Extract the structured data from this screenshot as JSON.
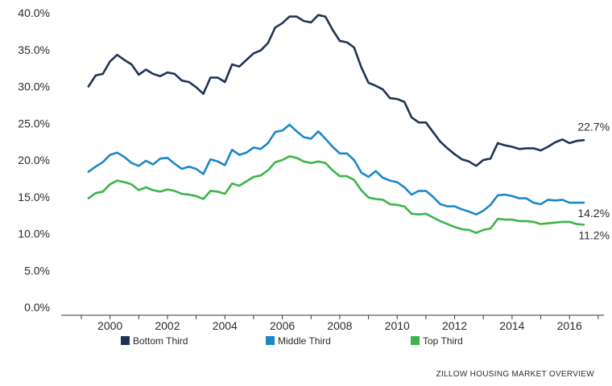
{
  "chart_data": {
    "type": "line",
    "title": "",
    "xlabel": "",
    "ylabel": "",
    "ylim": [
      0,
      40
    ],
    "xlim": [
      1998.3,
      2017.2
    ],
    "y_ticks": [
      0,
      5,
      10,
      15,
      20,
      25,
      30,
      35,
      40
    ],
    "y_tick_labels": [
      "0.0%",
      "5.0%",
      "10.0%",
      "15.0%",
      "20.0%",
      "25.0%",
      "30.0%",
      "35.0%",
      "40.0%"
    ],
    "x_ticks": [
      2000,
      2002,
      2004,
      2006,
      2008,
      2010,
      2012,
      2014,
      2016
    ],
    "x_tick_labels": [
      "2000",
      "2002",
      "2004",
      "2006",
      "2008",
      "2010",
      "2012",
      "2014",
      "2016"
    ],
    "grid": false,
    "legend_position": "bottom",
    "x": [
      1999.25,
      1999.5,
      1999.75,
      2000.0,
      2000.25,
      2000.5,
      2000.75,
      2001.0,
      2001.25,
      2001.5,
      2001.75,
      2002.0,
      2002.25,
      2002.5,
      2002.75,
      2003.0,
      2003.25,
      2003.5,
      2003.75,
      2004.0,
      2004.25,
      2004.5,
      2004.75,
      2005.0,
      2005.25,
      2005.5,
      2005.75,
      2006.0,
      2006.25,
      2006.5,
      2006.75,
      2007.0,
      2007.25,
      2007.5,
      2007.75,
      2008.0,
      2008.25,
      2008.5,
      2008.75,
      2009.0,
      2009.25,
      2009.5,
      2009.75,
      2010.0,
      2010.25,
      2010.5,
      2010.75,
      2011.0,
      2011.25,
      2011.5,
      2011.75,
      2012.0,
      2012.25,
      2012.5,
      2012.75,
      2013.0,
      2013.25,
      2013.5,
      2013.75,
      2014.0,
      2014.25,
      2014.5,
      2014.75,
      2015.0,
      2015.25,
      2015.5,
      2015.75,
      2016.0,
      2016.25,
      2016.5
    ],
    "series": [
      {
        "name": "Bottom Third",
        "color": "#1e3354",
        "end_label": "22.7%",
        "values": [
          30.0,
          31.5,
          31.7,
          33.4,
          34.3,
          33.6,
          33.0,
          31.6,
          32.3,
          31.7,
          31.4,
          31.9,
          31.7,
          30.8,
          30.6,
          29.9,
          29.0,
          31.2,
          31.2,
          30.6,
          33.0,
          32.7,
          33.6,
          34.5,
          34.9,
          35.9,
          38.0,
          38.6,
          39.5,
          39.5,
          38.9,
          38.7,
          39.7,
          39.5,
          37.7,
          36.2,
          36.0,
          35.3,
          32.6,
          30.5,
          30.1,
          29.6,
          28.4,
          28.3,
          27.9,
          25.8,
          25.1,
          25.1,
          23.8,
          22.5,
          21.6,
          20.8,
          20.1,
          19.8,
          19.2,
          20.0,
          20.2,
          22.3,
          22.0,
          21.8,
          21.5,
          21.6,
          21.6,
          21.3,
          21.8,
          22.4,
          22.8,
          22.3,
          22.6,
          22.7
        ]
      },
      {
        "name": "Middle Third",
        "color": "#1b87c9",
        "end_label": "14.2%",
        "values": [
          18.4,
          19.1,
          19.7,
          20.7,
          21.0,
          20.4,
          19.6,
          19.2,
          19.9,
          19.4,
          20.2,
          20.3,
          19.5,
          18.8,
          19.1,
          18.8,
          18.1,
          20.1,
          19.8,
          19.3,
          21.4,
          20.7,
          21.0,
          21.7,
          21.5,
          22.3,
          23.8,
          24.0,
          24.8,
          23.9,
          23.1,
          22.9,
          23.9,
          22.9,
          21.8,
          20.9,
          20.9,
          20.0,
          18.3,
          17.7,
          18.5,
          17.6,
          17.2,
          17.0,
          16.3,
          15.3,
          15.8,
          15.8,
          15.0,
          14.0,
          13.7,
          13.7,
          13.3,
          13.0,
          12.6,
          13.1,
          13.9,
          15.2,
          15.3,
          15.1,
          14.8,
          14.8,
          14.2,
          14.0,
          14.6,
          14.5,
          14.6,
          14.2,
          14.2,
          14.2
        ]
      },
      {
        "name": "Top Third",
        "color": "#3cb44b",
        "end_label": "11.2%",
        "values": [
          14.8,
          15.5,
          15.7,
          16.7,
          17.2,
          17.0,
          16.7,
          15.9,
          16.3,
          15.9,
          15.7,
          16.0,
          15.8,
          15.4,
          15.3,
          15.1,
          14.7,
          15.8,
          15.7,
          15.4,
          16.8,
          16.5,
          17.1,
          17.7,
          17.9,
          18.6,
          19.7,
          20.0,
          20.5,
          20.3,
          19.8,
          19.6,
          19.8,
          19.6,
          18.6,
          17.8,
          17.8,
          17.3,
          15.9,
          14.9,
          14.7,
          14.6,
          14.0,
          13.9,
          13.7,
          12.7,
          12.6,
          12.7,
          12.2,
          11.7,
          11.3,
          10.9,
          10.6,
          10.5,
          10.1,
          10.5,
          10.7,
          12.0,
          11.9,
          11.9,
          11.7,
          11.7,
          11.6,
          11.3,
          11.4,
          11.5,
          11.6,
          11.6,
          11.3,
          11.2
        ]
      }
    ]
  },
  "footer": {
    "source": "ZILLOW HOUSING MARKET OVERVIEW"
  }
}
